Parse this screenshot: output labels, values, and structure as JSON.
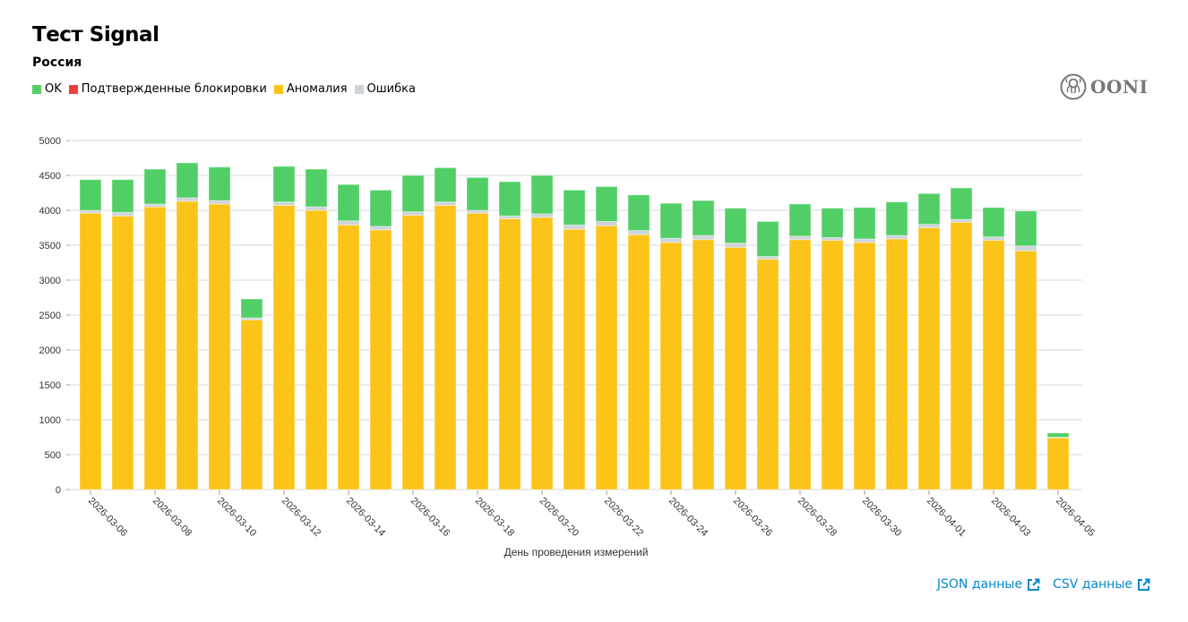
{
  "header": {
    "title": "Тест Signal",
    "subtitle": "Россия"
  },
  "legend": [
    {
      "label": "OK",
      "color": "#51cf66"
    },
    {
      "label": "Подтвержденные блокировки",
      "color": "#f03e3e"
    },
    {
      "label": "Аномалия",
      "color": "#fcc419"
    },
    {
      "label": "Ошибка",
      "color": "#ced4da"
    }
  ],
  "logo": {
    "text": "OONI",
    "icon": "octopus-icon"
  },
  "links": [
    {
      "label": "JSON данные",
      "icon": "external-link-icon"
    },
    {
      "label": "CSV данные",
      "icon": "external-link-icon"
    }
  ],
  "chart_data": {
    "type": "bar",
    "stacked": true,
    "title": "Тест Signal",
    "subtitle": "Россия",
    "xlabel": "День проведения измерений",
    "ylabel": "",
    "ylim": [
      0,
      5000
    ],
    "yticks": [
      0,
      500,
      1000,
      1500,
      2000,
      2500,
      3000,
      3500,
      4000,
      4500,
      5000
    ],
    "grid": true,
    "legend_position": "top-left",
    "categories": [
      "2026-03-06",
      "2026-03-07",
      "2026-03-08",
      "2026-03-09",
      "2026-03-10",
      "2026-03-11",
      "2026-03-12",
      "2026-03-13",
      "2026-03-14",
      "2026-03-15",
      "2026-03-16",
      "2026-03-17",
      "2026-03-18",
      "2026-03-19",
      "2026-03-20",
      "2026-03-21",
      "2026-03-22",
      "2026-03-23",
      "2026-03-24",
      "2026-03-25",
      "2026-03-26",
      "2026-03-27",
      "2026-03-28",
      "2026-03-29",
      "2026-03-30",
      "2026-03-31",
      "2026-04-01",
      "2026-04-02",
      "2026-04-03",
      "2026-04-04",
      "2026-04-05"
    ],
    "tick_labels": [
      "2026-03-06",
      "2026-03-08",
      "2026-03-10",
      "2026-03-12",
      "2026-03-14",
      "2026-03-16",
      "2026-03-18",
      "2026-03-20",
      "2026-03-22",
      "2026-03-24",
      "2026-03-26",
      "2026-03-28",
      "2026-03-30",
      "2026-04-01",
      "2026-04-03",
      "2026-04-05"
    ],
    "series": [
      {
        "name": "Аномалия",
        "color": "#fcc419",
        "values": [
          3960,
          3920,
          4050,
          4130,
          4090,
          2430,
          4070,
          4000,
          3790,
          3720,
          3930,
          4070,
          3960,
          3880,
          3900,
          3730,
          3780,
          3650,
          3540,
          3580,
          3470,
          3300,
          3580,
          3570,
          3540,
          3590,
          3750,
          3830,
          3570,
          3420,
          740
        ]
      },
      {
        "name": "Ошибка",
        "color": "#ced4da",
        "values": [
          40,
          50,
          40,
          50,
          50,
          30,
          50,
          50,
          60,
          50,
          50,
          50,
          40,
          40,
          50,
          60,
          60,
          60,
          60,
          60,
          60,
          40,
          50,
          40,
          50,
          50,
          50,
          40,
          50,
          70,
          10
        ]
      },
      {
        "name": "Подтвержденные блокировки",
        "color": "#f03e3e",
        "values": [
          0,
          0,
          0,
          0,
          0,
          0,
          0,
          0,
          0,
          0,
          0,
          0,
          0,
          0,
          0,
          0,
          0,
          0,
          0,
          0,
          0,
          0,
          0,
          0,
          0,
          0,
          0,
          0,
          0,
          0,
          0
        ]
      },
      {
        "name": "OK",
        "color": "#51cf66",
        "values": [
          440,
          470,
          500,
          500,
          480,
          270,
          510,
          540,
          520,
          520,
          520,
          490,
          470,
          490,
          550,
          500,
          500,
          510,
          500,
          500,
          500,
          500,
          460,
          420,
          450,
          480,
          440,
          450,
          420,
          500,
          60
        ]
      }
    ]
  }
}
